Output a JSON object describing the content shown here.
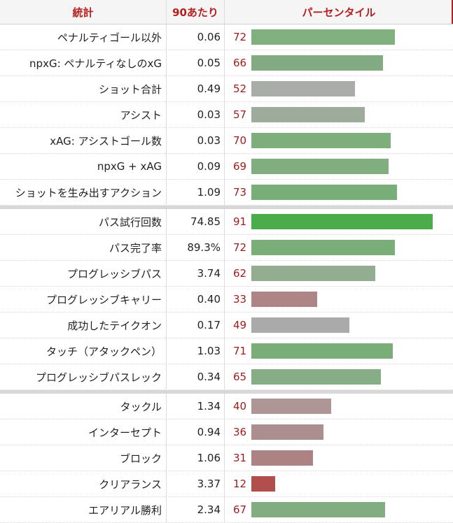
{
  "header": {
    "stat": "統計",
    "per90": "90あたり",
    "percentile": "パーセンタイル"
  },
  "groups": [
    {
      "rows": [
        {
          "stat": "ペナルティゴール以外",
          "per90": "0.06",
          "percentile": "72",
          "color": "#7fb07e"
        },
        {
          "stat": "npxG: ペナルティなしのxG",
          "per90": "0.05",
          "percentile": "66",
          "color": "#83ab81"
        },
        {
          "stat": "ショット合計",
          "per90": "0.49",
          "percentile": "52",
          "color": "#a9ada8"
        },
        {
          "stat": "アシスト",
          "per90": "0.03",
          "percentile": "57",
          "color": "#9ead9b"
        },
        {
          "stat": "xAG: アシストゴール数",
          "per90": "0.03",
          "percentile": "70",
          "color": "#7dae7c"
        },
        {
          "stat": "npxG + xAG",
          "per90": "0.09",
          "percentile": "69",
          "color": "#80ae7f"
        },
        {
          "stat": "ショットを生み出すアクション",
          "per90": "1.09",
          "percentile": "73",
          "color": "#7aae79"
        }
      ]
    },
    {
      "rows": [
        {
          "stat": "パス試行回数",
          "per90": "74.85",
          "percentile": "91",
          "color": "#4aad49"
        },
        {
          "stat": "パス完了率",
          "per90": "89.3%",
          "percentile": "72",
          "color": "#7aae79"
        },
        {
          "stat": "プログレッシブパス",
          "per90": "3.74",
          "percentile": "62",
          "color": "#92ad90"
        },
        {
          "stat": "プログレッシブキャリー",
          "per90": "0.40",
          "percentile": "33",
          "color": "#ad8585"
        },
        {
          "stat": "成功したテイクオン",
          "per90": "0.17",
          "percentile": "49",
          "color": "#abaaaa"
        },
        {
          "stat": "タッチ（アタックペン）",
          "per90": "1.03",
          "percentile": "71",
          "color": "#7aae79"
        },
        {
          "stat": "プログレッシブパスレック",
          "per90": "0.34",
          "percentile": "65",
          "color": "#86ad84"
        }
      ]
    },
    {
      "rows": [
        {
          "stat": "タックル",
          "per90": "1.34",
          "percentile": "40",
          "color": "#ae9696"
        },
        {
          "stat": "インターセプト",
          "per90": "0.94",
          "percentile": "36",
          "color": "#ad8e8e"
        },
        {
          "stat": "ブロック",
          "per90": "1.06",
          "percentile": "31",
          "color": "#ad8282"
        },
        {
          "stat": "クリアランス",
          "per90": "3.37",
          "percentile": "12",
          "color": "#b04f4c"
        },
        {
          "stat": "エアリアル勝利",
          "per90": "2.34",
          "percentile": "67",
          "color": "#82ad81"
        }
      ]
    }
  ]
}
